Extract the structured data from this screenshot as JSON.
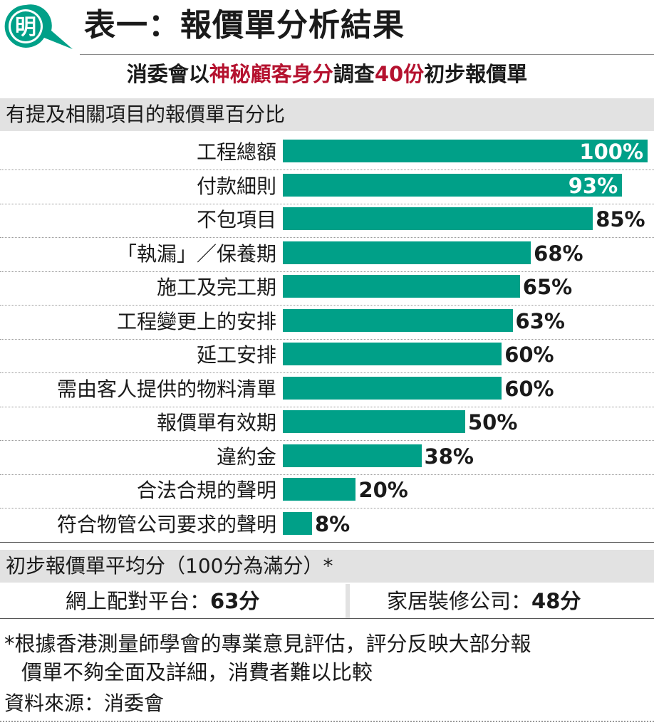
{
  "header": {
    "logo_char": "明",
    "title": "表一：報價單分析結果"
  },
  "subtitle": {
    "part1": "消委會以",
    "highlight1": "神秘顧客身分",
    "part2": "調查",
    "highlight2": "40份",
    "part3": "初步報價單"
  },
  "colors": {
    "bar": "#00a088",
    "highlight": "#b5122f",
    "logo": "#00a088",
    "section_bg": "#e2e2e2"
  },
  "chart_data": {
    "type": "bar",
    "orientation": "horizontal",
    "title": "有提及相關項目的報價單百分比",
    "categories": [
      "工程總額",
      "付款細則",
      "不包項目",
      "「執漏」／保養期",
      "施工及完工期",
      "工程變更上的安排",
      "延工安排",
      "需由客人提供的物料清單",
      "報價單有效期",
      "違約金",
      "合法合規的聲明",
      "符合物管公司要求的聲明"
    ],
    "values": [
      100,
      93,
      85,
      68,
      65,
      63,
      60,
      60,
      50,
      38,
      20,
      8
    ],
    "value_labels": [
      "100%",
      "93%",
      "85%",
      "68%",
      "65%",
      "63%",
      "60%",
      "60%",
      "50%",
      "38%",
      "20%",
      "8%"
    ],
    "xlim": [
      0,
      100
    ],
    "unit": "%",
    "grid": false
  },
  "scores": {
    "title": "初步報價單平均分（100分為滿分）*",
    "items": [
      {
        "label": "網上配對平台：",
        "value": "63分"
      },
      {
        "label": "家居裝修公司：",
        "value": "48分"
      }
    ]
  },
  "footnote": {
    "line1": "*根據香港測量師學會的專業意見評估，評分反映大部分報",
    "line2": "價單不夠全面及詳細，消費者難以比較"
  },
  "source": "資料來源：消委會"
}
